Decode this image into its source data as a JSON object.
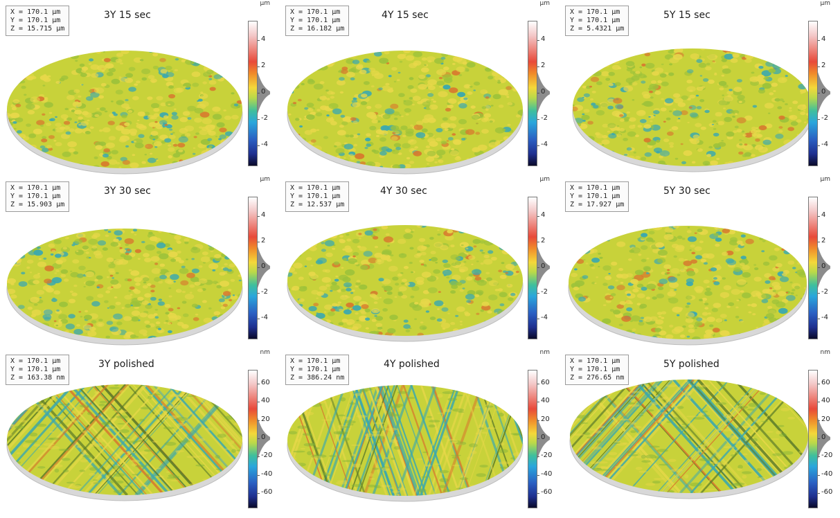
{
  "panels": [
    {
      "title": "3Y 15 sec",
      "x": "X = 170.1 µm",
      "y": "Y = 170.1 µm",
      "z": "Z = 15.715 µm",
      "unit": "µm",
      "ticks": [
        "4",
        "2",
        "0",
        "-2",
        "-4"
      ],
      "texture": "rough"
    },
    {
      "title": "4Y 15 sec",
      "x": "X = 170.1 µm",
      "y": "Y = 170.1 µm",
      "z": "Z = 16.182 µm",
      "unit": "µm",
      "ticks": [
        "4",
        "2",
        "0",
        "-2",
        "-4"
      ],
      "texture": "rough"
    },
    {
      "title": "5Y 15 sec",
      "x": "X = 170.1 µm",
      "y": "Y = 170.1 µm",
      "z": "Z = 5.4321 µm",
      "unit": "µm",
      "ticks": [
        "4",
        "2",
        "0",
        "-2",
        "-4"
      ],
      "texture": "rough"
    },
    {
      "title": "3Y 30 sec",
      "x": "X = 170.1 µm",
      "y": "Y = 170.1 µm",
      "z": "Z = 15.903 µm",
      "unit": "µm",
      "ticks": [
        "4",
        "2",
        "0",
        "-2",
        "-4"
      ],
      "texture": "rough"
    },
    {
      "title": "4Y 30 sec",
      "x": "X = 170.1 µm",
      "y": "Y = 170.1 µm",
      "z": "Z = 12.537 µm",
      "unit": "µm",
      "ticks": [
        "4",
        "2",
        "0",
        "-2",
        "-4"
      ],
      "texture": "rough"
    },
    {
      "title": "5Y 30 sec",
      "x": "X = 170.1 µm",
      "y": "Y = 170.1 µm",
      "z": "Z = 17.927 µm",
      "unit": "µm",
      "ticks": [
        "4",
        "2",
        "0",
        "-2",
        "-4"
      ],
      "texture": "rough"
    },
    {
      "title": "3Y polished",
      "x": "X = 170.1 µm",
      "y": "Y = 170.1 µm",
      "z": "Z = 163.38 nm",
      "unit": "nm",
      "ticks": [
        "60",
        "40",
        "20",
        "0",
        "-20",
        "-40",
        "-60"
      ],
      "texture": "striated"
    },
    {
      "title": "4Y polished",
      "x": "X = 170.1 µm",
      "y": "Y = 170.1 µm",
      "z": "Z = 386.24 nm",
      "unit": "nm",
      "ticks": [
        "60",
        "40",
        "20",
        "0",
        "-20",
        "-40",
        "-60"
      ],
      "texture": "striated"
    },
    {
      "title": "5Y polished",
      "x": "X = 170.1 µm",
      "y": "Y = 170.1 µm",
      "z": "Z = 276.65 nm",
      "unit": "nm",
      "ticks": [
        "60",
        "40",
        "20",
        "0",
        "-20",
        "-40",
        "-60"
      ],
      "texture": "striated"
    }
  ],
  "colors": {
    "surface_base": "#c8d23a",
    "surface_high": "#e8d84a",
    "surface_low": "#3aa8b0",
    "surface_peak": "#d8782e",
    "disc_edge": "#d8d8d8",
    "histogram": "#8c8c8c"
  }
}
